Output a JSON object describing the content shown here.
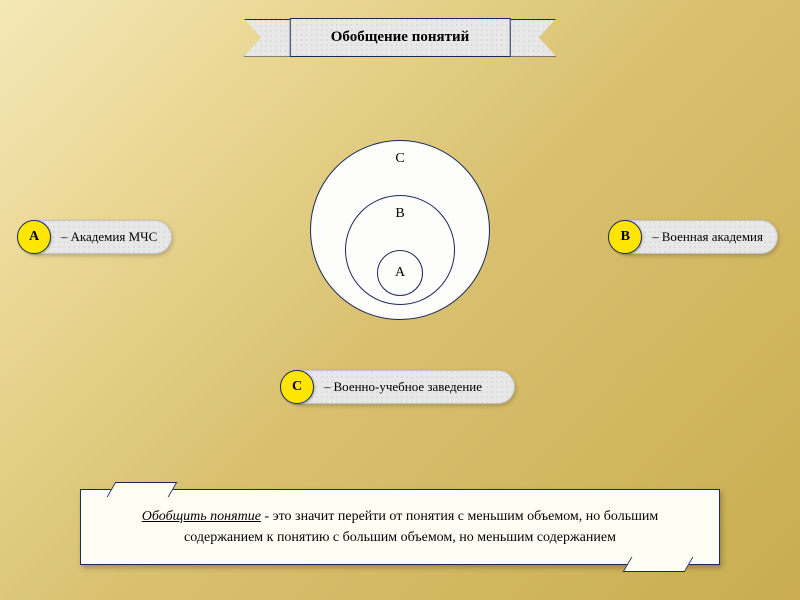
{
  "title": "Обобщение понятий",
  "venn": {
    "outer": "C",
    "middle": "B",
    "inner": "A",
    "circle_border": "#1a2a5a",
    "circle_fill": "#fdfdfb"
  },
  "legends": {
    "a": {
      "letter": "A",
      "dash": "–",
      "text": "Академия МЧС"
    },
    "b": {
      "letter": "B",
      "dash": "–",
      "text": "Военная академия"
    },
    "c": {
      "letter": "C",
      "dash": "–",
      "text": "Военно-учебное заведение"
    }
  },
  "definition": {
    "term": "Обобщить понятие",
    "sep": "-",
    "body": "это значит перейти от понятия с меньшим объемом, но большим содержанием к понятию с большим объемом, но меньшим содержанием"
  },
  "colors": {
    "dot_fill": "#ffe600",
    "dot_border": "#1a2a5a",
    "grain_bg": "#e8e8e8",
    "banner_border": "#1a2a5a"
  }
}
